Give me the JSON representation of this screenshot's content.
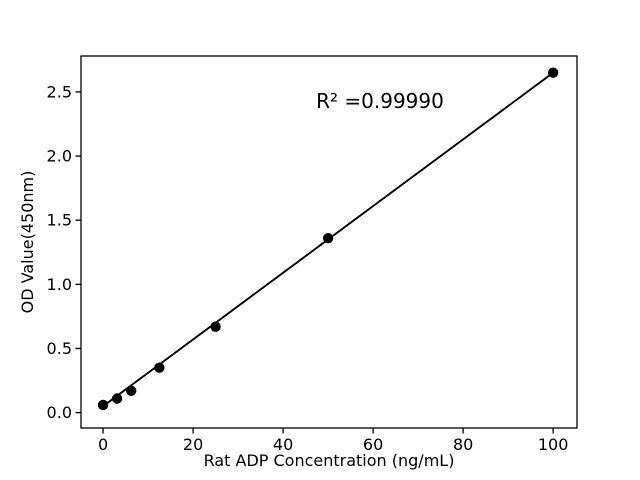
{
  "figure": {
    "background": "#ffffff"
  },
  "chart_data": {
    "type": "scatter",
    "title": "",
    "xlabel": "Rat ADP Concentration (ng/mL)",
    "ylabel": "OD Value(450nm)",
    "series": [
      {
        "name": "standard-curve-points",
        "kind": "scatter",
        "marker": "circle",
        "color": "#000000",
        "x": [
          0,
          3.125,
          6.25,
          12.5,
          25,
          50,
          100
        ],
        "y": [
          0.06,
          0.11,
          0.17,
          0.35,
          0.67,
          1.36,
          2.65
        ]
      },
      {
        "name": "linear-fit-line",
        "kind": "line",
        "color": "#000000",
        "x": [
          0,
          100
        ],
        "y": [
          0.05,
          2.65
        ]
      }
    ],
    "xlim": [
      -4.9,
      105.3
    ],
    "ylim": [
      -0.12,
      2.78
    ],
    "xticks": {
      "values": [
        0,
        20,
        40,
        60,
        80,
        100
      ],
      "labels": [
        "0",
        "20",
        "40",
        "60",
        "80",
        "100"
      ]
    },
    "yticks": {
      "values": [
        0,
        0.5,
        1.0,
        1.5,
        2.0,
        2.5
      ],
      "labels": [
        "0.0",
        "0.5",
        "1.0",
        "1.5",
        "2.0",
        "2.5"
      ]
    },
    "grid": false,
    "legend": false,
    "annotations": [
      {
        "text": "R² =0.99990",
        "x": 61.5,
        "y": 2.43,
        "anchor": "middle"
      }
    ],
    "colors": {
      "marker": "#000000",
      "line": "#000000",
      "axis": "#000000",
      "background": "#ffffff"
    }
  }
}
